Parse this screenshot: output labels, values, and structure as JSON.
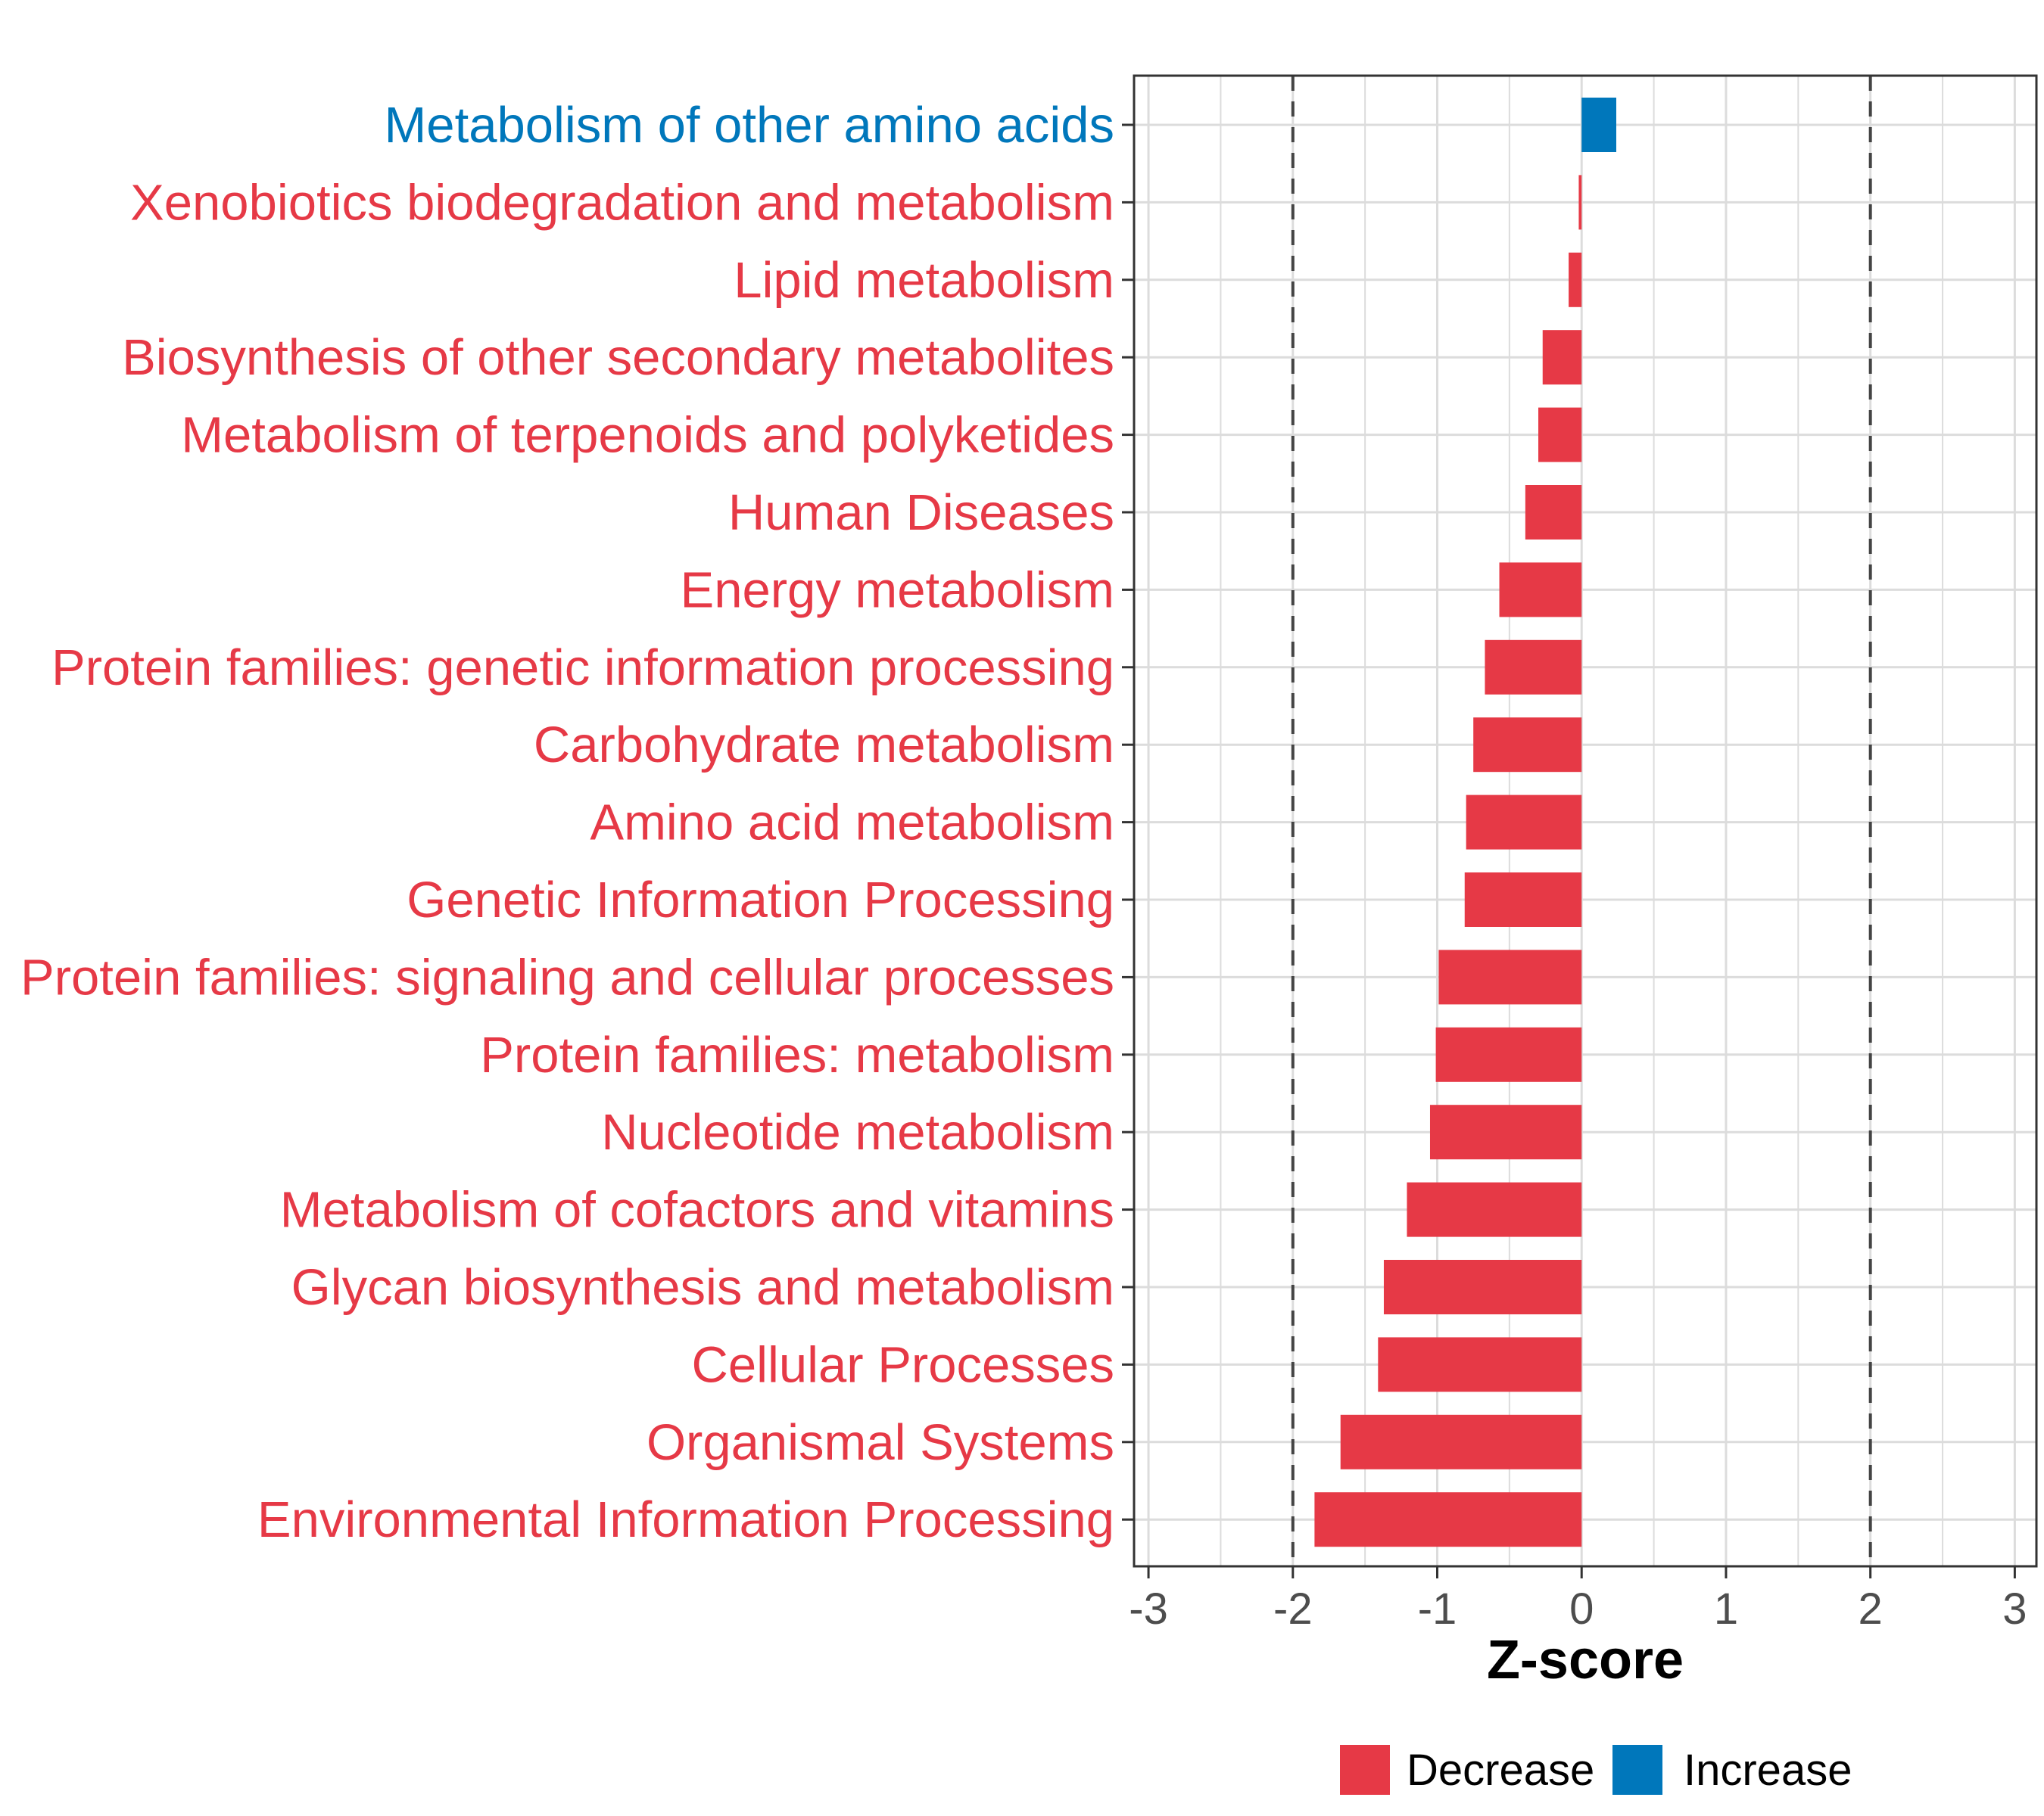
{
  "chart_data": {
    "type": "bar",
    "orientation": "horizontal",
    "title": "",
    "xlabel": "Z-score",
    "ylabel": "",
    "xlim": [
      -3.1,
      3.15
    ],
    "xticks": [
      -3,
      -2,
      -1,
      0,
      1,
      2,
      3
    ],
    "xtick_labels": [
      "-3",
      "-2",
      "-1",
      "0",
      "1",
      "2",
      "3"
    ],
    "reference_lines": [
      -2,
      2
    ],
    "grid": true,
    "categories": [
      "Metabolism of other amino acids",
      "Xenobiotics biodegradation and metabolism",
      "Lipid metabolism",
      "Biosynthesis of other secondary metabolites",
      "Metabolism of terpenoids and polyketides",
      "Human Diseases",
      "Energy metabolism",
      "Protein families: genetic information processing",
      "Carbohydrate metabolism",
      "Amino acid metabolism",
      "Genetic Information Processing",
      "Protein families: signaling and cellular processes",
      "Protein families: metabolism",
      "Nucleotide metabolism",
      "Metabolism of cofactors and vitamins",
      "Glycan biosynthesis and metabolism",
      "Cellular Processes",
      "Organismal Systems",
      "Environmental Information Processing"
    ],
    "values": [
      0.24,
      -0.02,
      -0.09,
      -0.27,
      -0.3,
      -0.39,
      -0.57,
      -0.67,
      -0.75,
      -0.8,
      -0.81,
      -0.99,
      -1.01,
      -1.05,
      -1.21,
      -1.37,
      -1.41,
      -1.67,
      -1.85
    ],
    "series_status": [
      "Increase",
      "Decrease",
      "Decrease",
      "Decrease",
      "Decrease",
      "Decrease",
      "Decrease",
      "Decrease",
      "Decrease",
      "Decrease",
      "Decrease",
      "Decrease",
      "Decrease",
      "Decrease",
      "Decrease",
      "Decrease",
      "Decrease",
      "Decrease",
      "Decrease"
    ],
    "legend": {
      "position": "bottom",
      "entries": [
        {
          "label": "Decrease",
          "color": "#E63946"
        },
        {
          "label": "Increase",
          "color": "#0077BB"
        }
      ]
    },
    "colors": {
      "Decrease": "#E63946",
      "Increase": "#0077BB"
    }
  }
}
